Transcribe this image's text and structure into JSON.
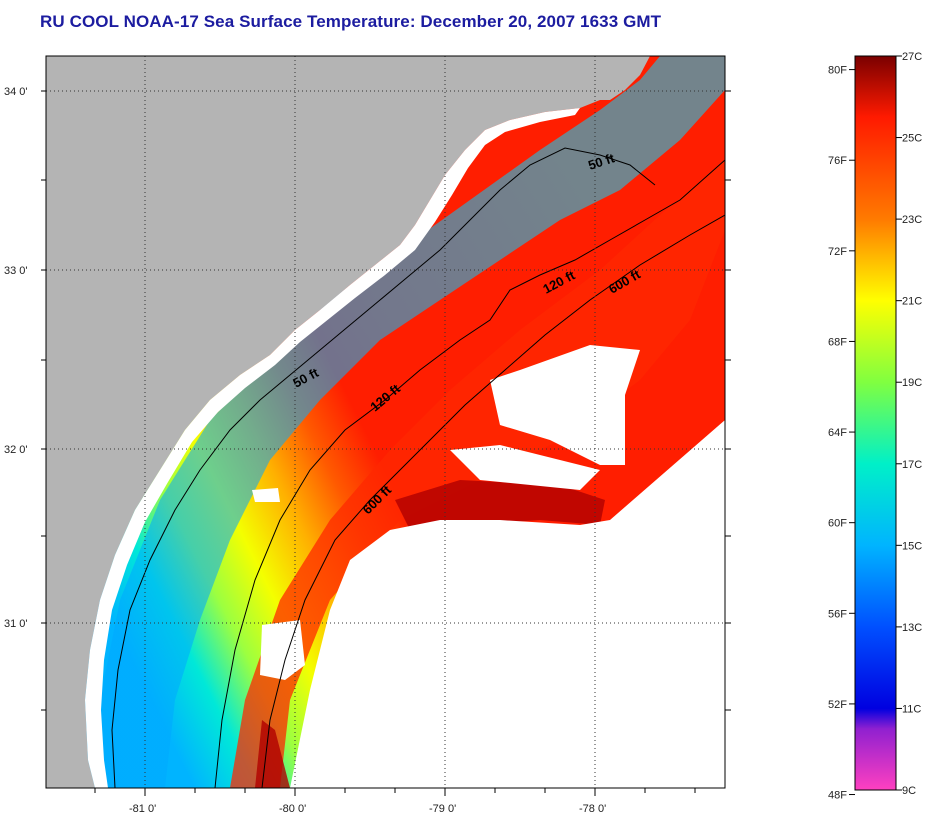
{
  "title": "RU COOL  NOAA-17  Sea Surface Temperature:  December 20, 2007 1633 GMT",
  "map": {
    "longitude_labels": [
      "-81 0'",
      "-80 0'",
      "-79 0'",
      "-78 0'"
    ],
    "latitude_labels": [
      "34 0'",
      "33 0'",
      "32 0'",
      "31 0'"
    ],
    "contour_labels": [
      {
        "text": "50 ft",
        "isobath_ft": 50
      },
      {
        "text": "50 ft",
        "isobath_ft": 50
      },
      {
        "text": "120 ft",
        "isobath_ft": 120
      },
      {
        "text": "120 ft",
        "isobath_ft": 120
      },
      {
        "text": "600 ft",
        "isobath_ft": 600
      },
      {
        "text": "600 ft",
        "isobath_ft": 600
      }
    ],
    "colors": {
      "land": "#b4b4b4",
      "cloud": "#ffffff",
      "contour_line": "#000000"
    }
  },
  "colorbar": {
    "fahrenheit_labels": [
      "80F",
      "76F",
      "72F",
      "68F",
      "64F",
      "60F",
      "56F",
      "52F",
      "48F"
    ],
    "celsius_labels": [
      "27C",
      "25C",
      "23C",
      "21C",
      "19C",
      "17C",
      "15C",
      "13C",
      "11C",
      "9C"
    ],
    "gradient_stops": [
      {
        "temp_c": 27,
        "color": "#7a0000"
      },
      {
        "temp_c": 25.5,
        "color": "#ff1a00"
      },
      {
        "temp_c": 23,
        "color": "#ff7a00"
      },
      {
        "temp_c": 21,
        "color": "#ffff00"
      },
      {
        "temp_c": 19,
        "color": "#80ff40"
      },
      {
        "temp_c": 17,
        "color": "#00f0c8"
      },
      {
        "temp_c": 15,
        "color": "#00b4ff"
      },
      {
        "temp_c": 13,
        "color": "#0050ff"
      },
      {
        "temp_c": 11,
        "color": "#0000e0"
      },
      {
        "temp_c": 10.5,
        "color": "#9020d0"
      },
      {
        "temp_c": 9,
        "color": "#ff40c0"
      }
    ]
  }
}
